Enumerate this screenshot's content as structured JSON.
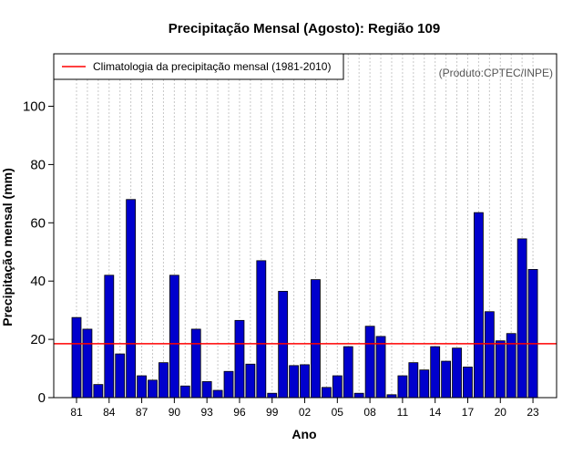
{
  "colors": {
    "bar_fill": "#0000CD",
    "bar_stroke": "#000000",
    "climatology_line": "#FF0000",
    "grid": "#C8C8C8",
    "source_text": "#555555"
  },
  "chart_data": {
    "type": "bar",
    "title": "Precipitação Mensal (Agosto): Região 109",
    "xlabel": "Ano",
    "ylabel": "Precipitação mensal (mm)",
    "ylim": [
      0,
      118
    ],
    "yticks": [
      0,
      20,
      40,
      60,
      80,
      100
    ],
    "grid": "vertical dotted",
    "categories": [
      "81",
      "82",
      "83",
      "84",
      "85",
      "86",
      "87",
      "88",
      "89",
      "90",
      "91",
      "92",
      "93",
      "94",
      "95",
      "96",
      "97",
      "98",
      "99",
      "00",
      "01",
      "02",
      "03",
      "04",
      "05",
      "06",
      "07",
      "08",
      "09",
      "10",
      "11",
      "12",
      "13",
      "14",
      "15",
      "16",
      "17",
      "18",
      "19",
      "20",
      "21",
      "22",
      "23"
    ],
    "xtick_labels": [
      "81",
      "84",
      "87",
      "90",
      "93",
      "96",
      "99",
      "02",
      "05",
      "08",
      "11",
      "14",
      "17",
      "20",
      "23"
    ],
    "values": [
      27.5,
      23.5,
      4.5,
      42,
      15,
      68,
      7.5,
      6,
      12,
      42,
      4,
      23.5,
      5.5,
      2.5,
      9,
      26.5,
      11.5,
      47,
      1.5,
      36.5,
      11,
      11.3,
      40.5,
      3.5,
      7.5,
      17.5,
      1.5,
      24.5,
      21,
      1,
      7.5,
      12,
      9.5,
      17.5,
      12.5,
      17,
      10.5,
      63.5,
      29.5,
      19.5,
      22,
      54.5,
      44
    ],
    "climatology": {
      "value": 18.5,
      "label": "Climatologia da precipitação mensal (1981-2010)"
    },
    "legend_position": "top-left",
    "source": "(Produto:CPTEC/INPE)"
  }
}
